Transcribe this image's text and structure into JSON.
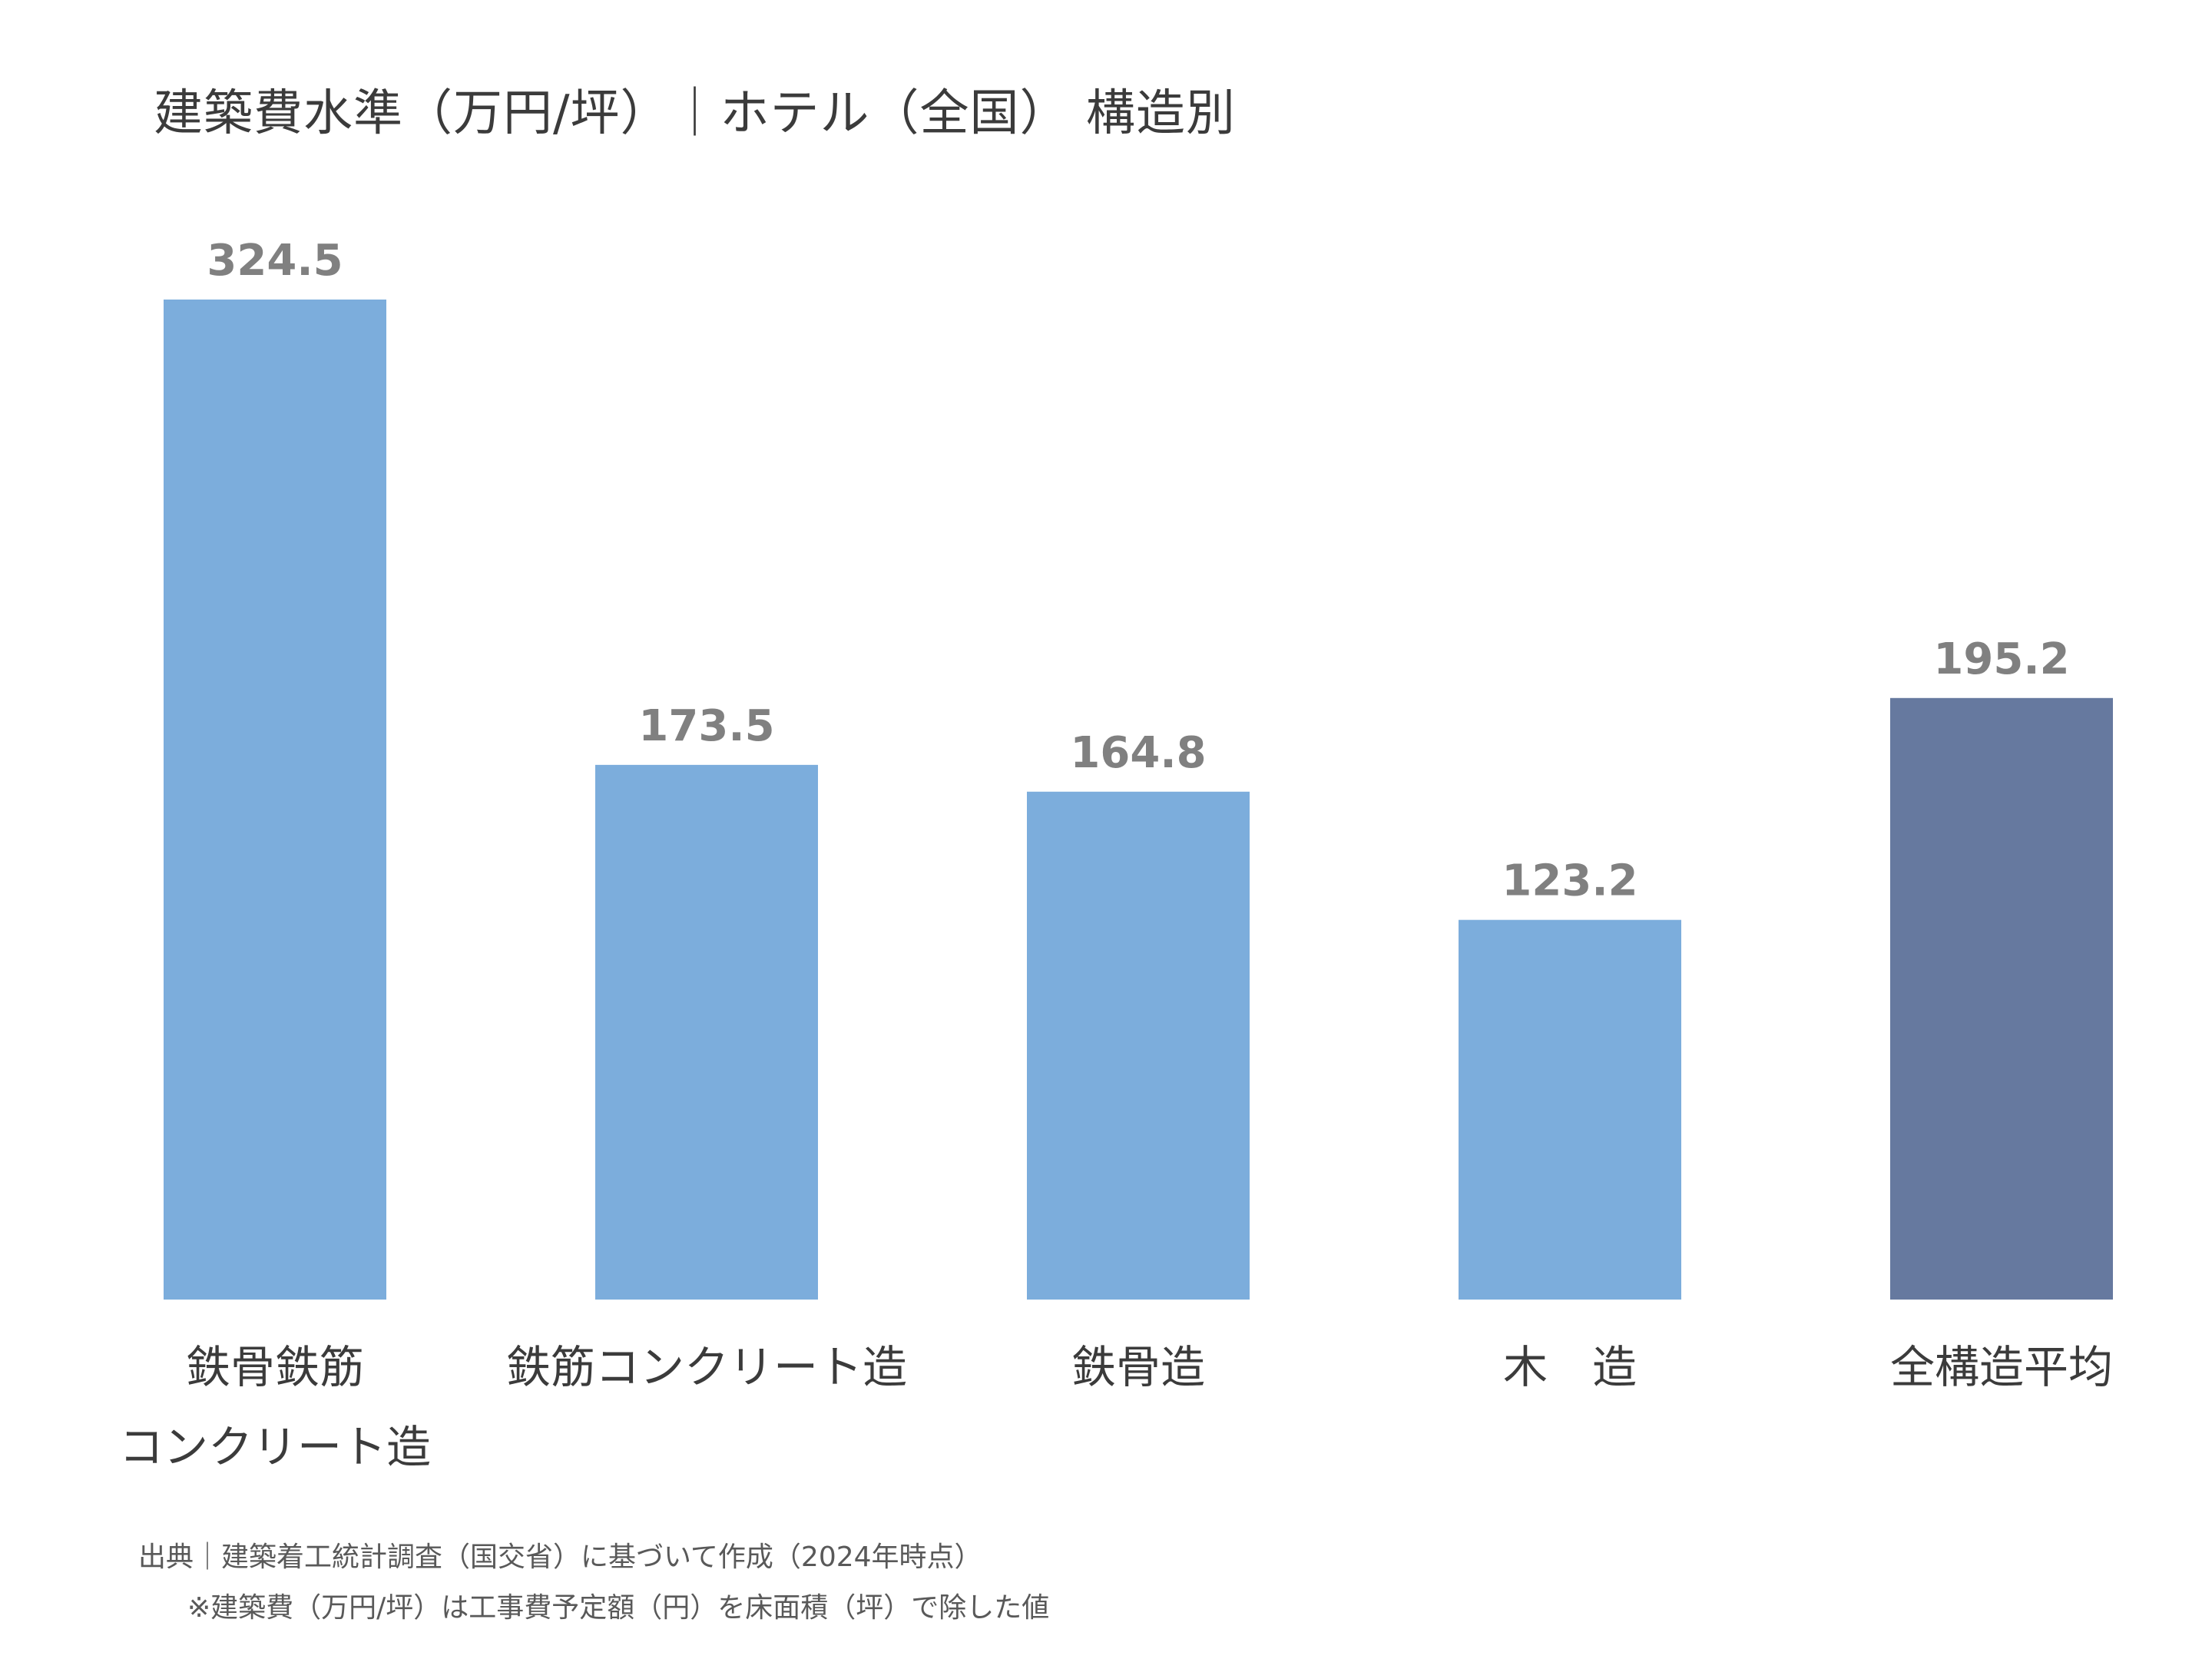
{
  "title": "建築費水準（万円/坪）｜ホテル（全国） 構造別",
  "chart_data": {
    "type": "bar",
    "title": "建築費水準（万円/坪）｜ホテル（全国） 構造別",
    "categories": [
      [
        "鉄骨鉄筋",
        "コンクリート造"
      ],
      [
        "鉄筋コンクリート造"
      ],
      [
        "鉄骨造"
      ],
      [
        "木　造"
      ],
      [
        "全構造平均"
      ]
    ],
    "values": [
      324.5,
      173.5,
      164.8,
      123.2,
      195.2
    ],
    "value_labels": [
      "324.5",
      "173.5",
      "164.8",
      "123.2",
      "195.2"
    ],
    "colors": [
      "#7caddc",
      "#7caddc",
      "#7caddc",
      "#7caddc",
      "#66799f"
    ],
    "ylim": [
      0,
      324.5
    ],
    "xlabel": "",
    "ylabel": "",
    "grid": false,
    "legend": "none"
  },
  "footer": {
    "source": "出典｜建築着工統計調査（国交省）に基づいて作成（2024年時点）",
    "note": "※建築費（万円/坪）は工事費予定額（円）を床面積（坪）で除した値"
  }
}
